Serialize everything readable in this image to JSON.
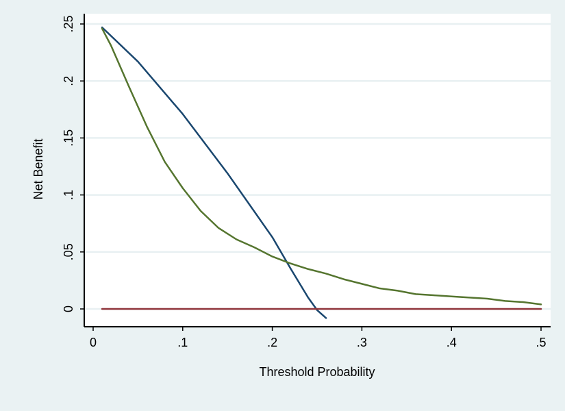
{
  "chart_data": {
    "type": "line",
    "xlabel": "Threshold Probability",
    "ylabel": "Net Benefit",
    "xlim": [
      0,
      0.5
    ],
    "ylim": [
      -0.01,
      0.25
    ],
    "x_ticks": [
      {
        "value": 0,
        "label": "0"
      },
      {
        "value": 0.1,
        "label": ".1"
      },
      {
        "value": 0.2,
        "label": ".2"
      },
      {
        "value": 0.3,
        "label": ".3"
      },
      {
        "value": 0.4,
        "label": ".4"
      },
      {
        "value": 0.5,
        "label": ".5"
      }
    ],
    "y_ticks": [
      {
        "value": 0,
        "label": "0"
      },
      {
        "value": 0.05,
        "label": ".05"
      },
      {
        "value": 0.1,
        "label": ".1"
      },
      {
        "value": 0.15,
        "label": ".15"
      },
      {
        "value": 0.2,
        "label": ".2"
      },
      {
        "value": 0.25,
        "label": ".25"
      }
    ],
    "grid": "horizontal",
    "legend": "none",
    "background_color": "#eaf2f3",
    "plot_background_color": "#ffffff",
    "grid_color": "#e8f0f2",
    "series": [
      {
        "color": "#1a476f",
        "x": [
          0.01,
          0.05,
          0.1,
          0.15,
          0.2,
          0.22,
          0.24,
          0.25,
          0.26
        ],
        "y": [
          0.247,
          0.217,
          0.171,
          0.119,
          0.063,
          0.036,
          0.01,
          -0.001,
          -0.008
        ]
      },
      {
        "color": "#55752f",
        "x": [
          0.01,
          0.02,
          0.04,
          0.06,
          0.08,
          0.1,
          0.12,
          0.14,
          0.16,
          0.18,
          0.2,
          0.22,
          0.24,
          0.26,
          0.28,
          0.3,
          0.32,
          0.34,
          0.36,
          0.38,
          0.4,
          0.42,
          0.44,
          0.46,
          0.48,
          0.5
        ],
        "y": [
          0.246,
          0.231,
          0.195,
          0.16,
          0.129,
          0.106,
          0.086,
          0.071,
          0.061,
          0.054,
          0.046,
          0.04,
          0.035,
          0.031,
          0.026,
          0.022,
          0.018,
          0.016,
          0.013,
          0.012,
          0.011,
          0.01,
          0.009,
          0.007,
          0.006,
          0.004
        ]
      },
      {
        "color": "#90353b",
        "x": [
          0.01,
          0.5
        ],
        "y": [
          0,
          0
        ]
      }
    ]
  }
}
